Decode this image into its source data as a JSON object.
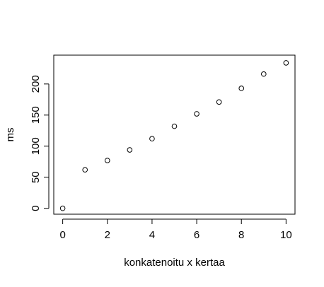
{
  "chart_data": {
    "type": "scatter",
    "title": "",
    "xlabel": "konkatenoitu x kertaa",
    "ylabel": "ms",
    "xlim": [
      -0.4,
      10.4
    ],
    "ylim": [
      -9.4,
      246.4
    ],
    "xticks": [
      0,
      2,
      4,
      6,
      8,
      10
    ],
    "yticks": [
      0,
      50,
      100,
      150,
      200
    ],
    "xtick_labels": [
      "0",
      "2",
      "4",
      "6",
      "8",
      "10"
    ],
    "ytick_labels": [
      "0",
      "50",
      "100",
      "150",
      "200"
    ],
    "grid": false,
    "legend": "none",
    "marker": "open-circle",
    "series": [
      {
        "x": [
          0,
          1,
          2,
          3,
          4,
          5,
          6,
          7,
          8,
          9,
          10
        ],
        "y": [
          0,
          62,
          77,
          94,
          112,
          132,
          152,
          171,
          193,
          216,
          234
        ]
      }
    ]
  }
}
